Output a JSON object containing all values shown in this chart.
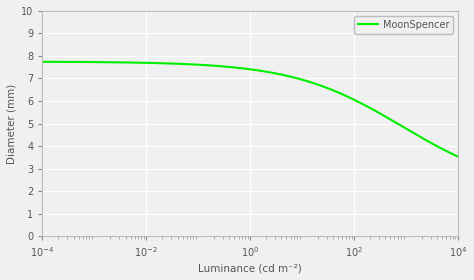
{
  "title": "",
  "xlabel": "Luminance (cd m⁻²)",
  "ylabel": "Diameter (mm)",
  "legend_label": "MoonSpencer",
  "line_color": "#00ee00",
  "xlim_log": [
    -4,
    4
  ],
  "ylim": [
    0,
    10
  ],
  "yticks": [
    0,
    1,
    2,
    3,
    4,
    5,
    6,
    7,
    8,
    9,
    10
  ],
  "xtick_positions": [
    -4,
    -2,
    0,
    2,
    4
  ],
  "background_color": "#f0f0f0",
  "grid_color": "#ffffff",
  "font_color": "#555555",
  "tick_color": "#888888",
  "spine_color": "#bbbbbb"
}
